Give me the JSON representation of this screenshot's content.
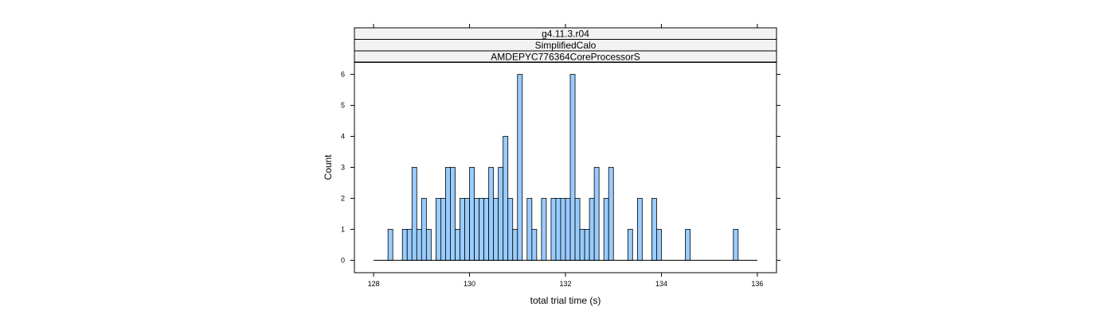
{
  "chart_data": {
    "type": "bar",
    "subtype": "histogram",
    "strips": [
      "g4.11.3.r04",
      "SimplifiedCalo",
      "AMDEPYC776364CoreProcessorS"
    ],
    "xlabel": "total trial time (s)",
    "ylabel": "Count",
    "xlim": [
      127.6,
      136.4
    ],
    "ylim": [
      -0.4,
      6.4
    ],
    "x_ticks": [
      128,
      130,
      132,
      134,
      136
    ],
    "y_ticks": [
      0,
      1,
      2,
      3,
      4,
      5,
      6
    ],
    "bin_width": 0.1,
    "bin_start": 128.0,
    "counts": [
      0,
      0,
      0,
      1,
      0,
      0,
      1,
      1,
      3,
      1,
      2,
      1,
      0,
      2,
      2,
      3,
      3,
      1,
      2,
      2,
      3,
      2,
      2,
      2,
      3,
      2,
      3,
      4,
      2,
      1,
      6,
      0,
      2,
      1,
      0,
      2,
      0,
      2,
      2,
      2,
      2,
      6,
      2,
      1,
      1,
      2,
      3,
      0,
      2,
      3,
      0,
      0,
      0,
      1,
      0,
      2,
      0,
      0,
      2,
      1,
      0,
      0,
      0,
      0,
      0,
      1,
      0,
      0,
      0,
      0,
      0,
      0,
      0,
      0,
      0,
      1,
      0,
      0,
      0,
      0
    ],
    "bar_color": "#99ccff",
    "grid": false
  }
}
